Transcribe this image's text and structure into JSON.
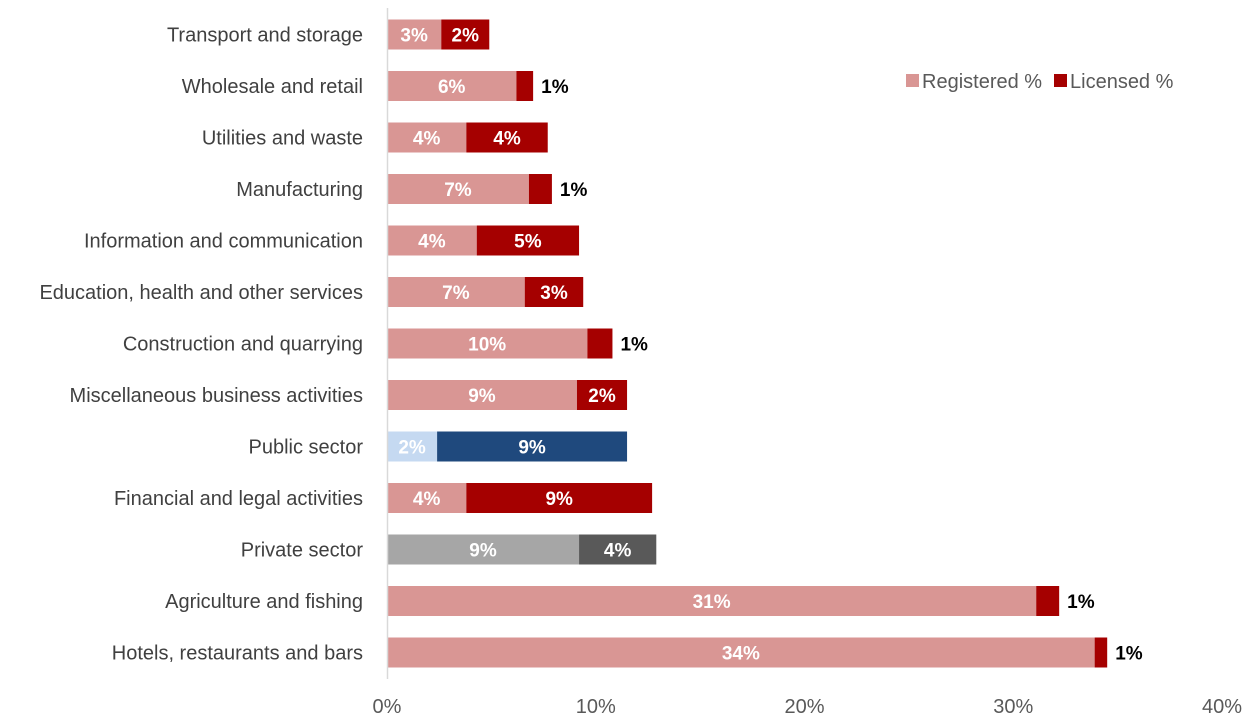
{
  "chart_data": {
    "type": "bar",
    "orientation": "horizontal",
    "stacked": true,
    "categories": [
      "Transport and storage",
      "Wholesale and retail",
      "Utilities and waste",
      "Manufacturing",
      "Information and communication",
      "Education, health and other services",
      "Construction and quarrying",
      "Miscellaneous business activities",
      "Public sector",
      "Financial and legal activities",
      "Private sector",
      "Agriculture and fishing",
      "Hotels, restaurants and bars"
    ],
    "series": [
      {
        "name": "Registered %",
        "values": [
          2.6,
          6.2,
          3.8,
          6.8,
          4.3,
          6.6,
          9.6,
          9.1,
          2.4,
          3.8,
          9.2,
          31.1,
          33.9
        ],
        "labels": [
          "3%",
          "6%",
          "4%",
          "7%",
          "4%",
          "7%",
          "10%",
          "9%",
          "2%",
          "4%",
          "9%",
          "31%",
          "34%"
        ],
        "color": "#d99694",
        "colors_override": {
          "8": "#c5d9f1",
          "10": "#a6a6a6"
        }
      },
      {
        "name": "Licensed %",
        "values": [
          2.3,
          0.8,
          3.9,
          1.1,
          4.9,
          2.8,
          1.2,
          2.4,
          9.1,
          8.9,
          3.7,
          1.1,
          0.6
        ],
        "labels": [
          "2%",
          "1%",
          "4%",
          "1%",
          "5%",
          "3%",
          "1%",
          "2%",
          "9%",
          "9%",
          "4%",
          "1%",
          "1%"
        ],
        "color": "#a50000",
        "colors_override": {
          "8": "#1f497d",
          "10": "#595959"
        }
      }
    ],
    "xlim": [
      0,
      40
    ],
    "xticks": [
      "0%",
      "10%",
      "20%",
      "30%",
      "40%"
    ],
    "xtick_values": [
      0,
      10,
      20,
      30,
      40
    ],
    "grid": false,
    "legend_position": "top-right",
    "title": "",
    "xlabel": "",
    "ylabel": ""
  }
}
